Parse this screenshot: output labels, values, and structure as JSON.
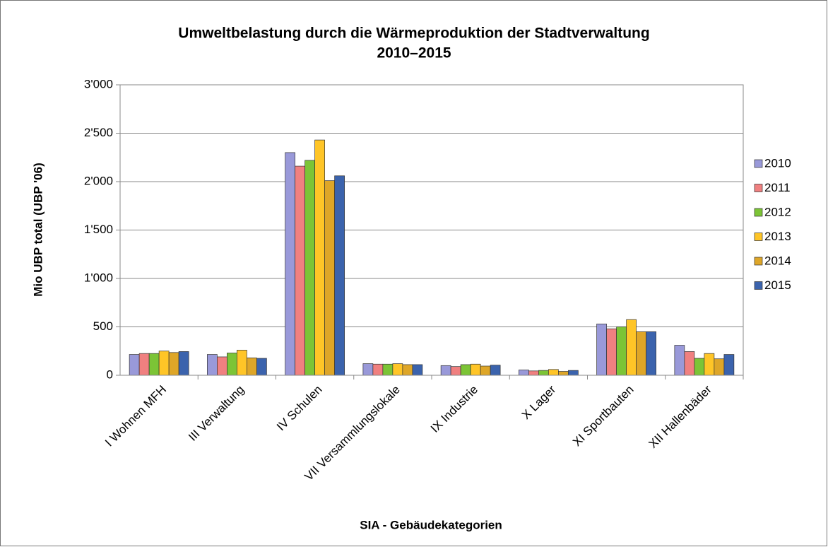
{
  "chart_data": {
    "type": "bar",
    "title": [
      "Umweltbelastung durch die Wärmeproduktion der Stadtverwaltung",
      "2010–2015"
    ],
    "x_label": "SIA - Gebäudekategorien",
    "y_label": "Mio UBP total (UBP '06)",
    "categories": [
      "I Wohnen MFH",
      "III Verwaltung",
      "IV Schulen",
      "VII Versammlungslokale",
      "IX Industrie",
      "X Lager",
      "XI Sportbauten",
      "XII Hallenbäder"
    ],
    "series": [
      {
        "name": "2010",
        "color": "#9999d9",
        "values": [
          215,
          215,
          2300,
          120,
          100,
          55,
          530,
          310
        ]
      },
      {
        "name": "2011",
        "color": "#f08080",
        "values": [
          225,
          190,
          2160,
          115,
          90,
          45,
          480,
          245
        ]
      },
      {
        "name": "2012",
        "color": "#7cc436",
        "values": [
          225,
          230,
          2220,
          115,
          110,
          50,
          500,
          175
        ]
      },
      {
        "name": "2013",
        "color": "#ffc527",
        "values": [
          250,
          260,
          2430,
          120,
          115,
          60,
          575,
          225
        ]
      },
      {
        "name": "2014",
        "color": "#dea628",
        "values": [
          235,
          180,
          2010,
          110,
          95,
          40,
          450,
          170
        ]
      },
      {
        "name": "2015",
        "color": "#3b63ad",
        "values": [
          245,
          175,
          2060,
          110,
          105,
          50,
          450,
          215
        ]
      }
    ],
    "ylim": [
      0,
      3000
    ],
    "yticks": [
      0,
      500,
      {
        "value": 1000,
        "label": "1'000"
      },
      {
        "value": 1500,
        "label": "1'500"
      },
      {
        "value": 2000,
        "label": "2'000"
      },
      {
        "value": 2500,
        "label": "2'500"
      },
      {
        "value": 3000,
        "label": "3'000"
      }
    ],
    "grid": true,
    "legend": "right"
  }
}
